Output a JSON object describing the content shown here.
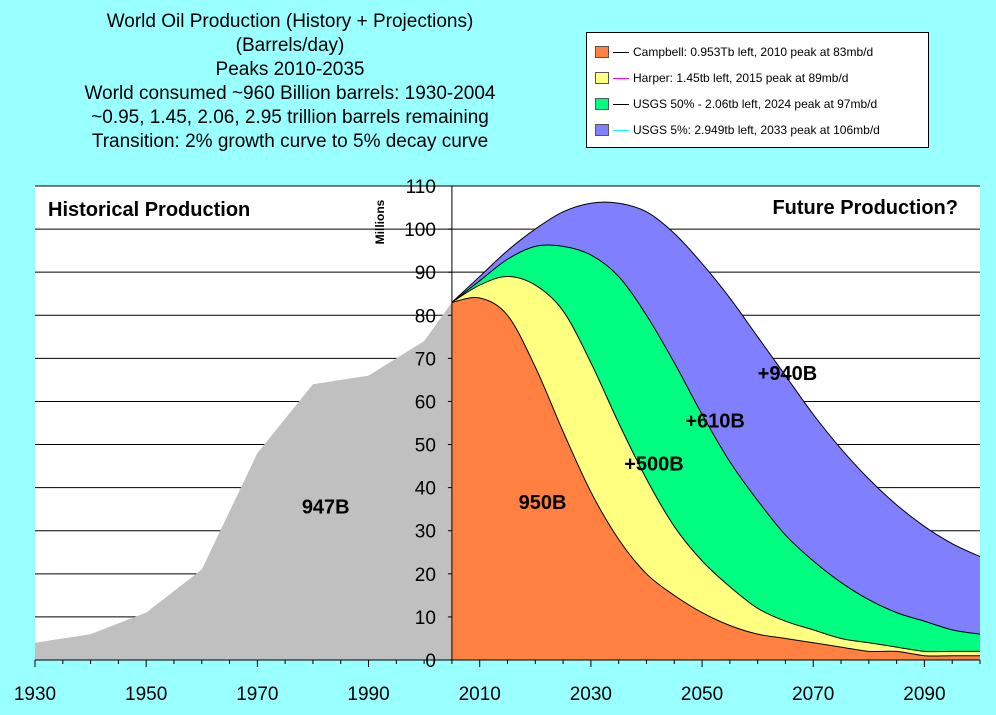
{
  "chart_data": {
    "type": "area",
    "title_lines": [
      "World Oil Production (History + Projections)",
      "(Barrels/day)",
      "Peaks 2010-2035",
      "World consumed ~960 Billion barrels: 1930-2004",
      "~0.95, 1.45, 2.06, 2.95 trillion barrels remaining",
      "Transition: 2% growth curve to 5% decay curve"
    ],
    "ylabel": "Millions",
    "xlim": [
      1930,
      2100
    ],
    "ylim": [
      0,
      110
    ],
    "y_ticks": [
      0,
      10,
      20,
      30,
      40,
      50,
      60,
      70,
      80,
      90,
      100,
      110
    ],
    "x_ticks": [
      1930,
      1950,
      1970,
      1990,
      2010,
      2030,
      2050,
      2070,
      2090
    ],
    "grid": true,
    "legend_position": "top-right",
    "historical": {
      "color": "#C0C0C0",
      "x": [
        1930,
        1940,
        1950,
        1960,
        1970,
        1980,
        1990,
        2000,
        2005
      ],
      "y": [
        4,
        6,
        11,
        21,
        48,
        64,
        66,
        74,
        83
      ]
    },
    "series": [
      {
        "name": "USGS 5%: 2.949tb left, 2033 peak at 106mb/d",
        "color": "#8080FF",
        "x": [
          2005,
          2010,
          2015,
          2020,
          2025,
          2030,
          2035,
          2040,
          2045,
          2050,
          2055,
          2060,
          2065,
          2070,
          2075,
          2080,
          2085,
          2090,
          2095,
          2100
        ],
        "y": [
          83,
          89,
          95,
          100,
          104,
          106,
          106,
          104,
          99,
          92,
          84,
          75,
          66,
          57,
          49,
          42,
          36,
          31,
          27,
          24
        ]
      },
      {
        "name": "USGS 50% - 2.06tb left, 2024 peak at 97mb/d",
        "color": "#00FF80",
        "x": [
          2005,
          2010,
          2015,
          2020,
          2025,
          2030,
          2035,
          2040,
          2045,
          2050,
          2055,
          2060,
          2065,
          2070,
          2075,
          2080,
          2085,
          2090,
          2095,
          2100
        ],
        "y": [
          83,
          88,
          93,
          96,
          96,
          94,
          89,
          80,
          69,
          57,
          46,
          37,
          29,
          23,
          18,
          14,
          11,
          9,
          7,
          6
        ]
      },
      {
        "name": "Harper: 1.45tb left, 2015 peak at 89mb/d",
        "color": "#FFFF80",
        "x": [
          2005,
          2010,
          2015,
          2020,
          2025,
          2030,
          2035,
          2040,
          2045,
          2050,
          2055,
          2060,
          2065,
          2070,
          2075,
          2080,
          2085,
          2090,
          2095,
          2100
        ],
        "y": [
          83,
          87,
          89,
          87,
          81,
          69,
          55,
          42,
          31,
          23,
          17,
          12,
          9,
          7,
          5,
          4,
          3,
          2,
          2,
          2
        ]
      },
      {
        "name": "Campbell: 0.953Tb left, 2010 peak at 83mb/d",
        "color": "#FF8040",
        "x": [
          2005,
          2010,
          2015,
          2020,
          2025,
          2030,
          2035,
          2040,
          2045,
          2050,
          2055,
          2060,
          2065,
          2070,
          2075,
          2080,
          2085,
          2090,
          2095,
          2100
        ],
        "y": [
          83,
          84,
          80,
          68,
          53,
          39,
          28,
          20,
          15,
          11,
          8,
          6,
          5,
          4,
          3,
          2,
          2,
          1,
          1,
          1
        ]
      }
    ],
    "legend_order": [
      3,
      2,
      1,
      0
    ],
    "annotations": {
      "historical_label": "Historical Production",
      "future_label": "Future Production?",
      "area_labels": [
        {
          "text": "947B",
          "x": 1978,
          "y": 34
        },
        {
          "text": "950B",
          "x": 2017,
          "y": 35
        },
        {
          "text": "+500B",
          "x": 2036,
          "y": 44
        },
        {
          "text": "+610B",
          "x": 2047,
          "y": 54
        },
        {
          "text": "+940B",
          "x": 2060,
          "y": 65
        }
      ]
    }
  }
}
